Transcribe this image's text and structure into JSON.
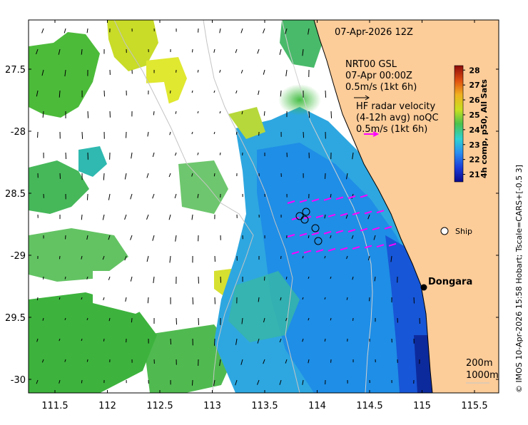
{
  "map": {
    "timestamp": "07-Apr-2026 12Z",
    "model": {
      "line1": "NRT00 GSL",
      "line2": "07-Apr 00:00Z",
      "line3": "0.5m/s (1kt 6h)"
    },
    "radar": {
      "line1": "HF radar velocity",
      "line2": "(4-12h avg) noQC",
      "line3": "0.5m/s (1kt 6h)",
      "arrow_color": "#ff00ff"
    },
    "colorbar": {
      "label": "4h comp, p50, All Sats",
      "ticks": [
        "28",
        "27",
        "26",
        "25",
        "24",
        "23",
        "22",
        "21"
      ],
      "min": 20.5,
      "max": 28.3
    },
    "places": {
      "ship": "Ship",
      "town": "Dongara"
    },
    "contours": {
      "label1": "200m",
      "label2": "1000m"
    },
    "credit": "© IMOS 10-Apr-2026 15:58 Hobart; Tscale=CARS+[-0.5 3]",
    "x_axis": {
      "labels": [
        "111.5",
        "112",
        "112.5",
        "113",
        "113.5",
        "114",
        "114.5",
        "115",
        "115.5"
      ],
      "values": [
        111.5,
        112,
        112.5,
        113,
        113.5,
        114,
        114.5,
        115,
        115.5
      ]
    },
    "y_axis": {
      "labels": [
        "27.5",
        "-28",
        "28.5",
        "-29",
        "29.5",
        "-30"
      ],
      "values": [
        -27.5,
        -28,
        -28.5,
        -29,
        -29.5,
        -30
      ]
    },
    "colors": {
      "land": "#fccc99",
      "frame": "#000000"
    }
  }
}
